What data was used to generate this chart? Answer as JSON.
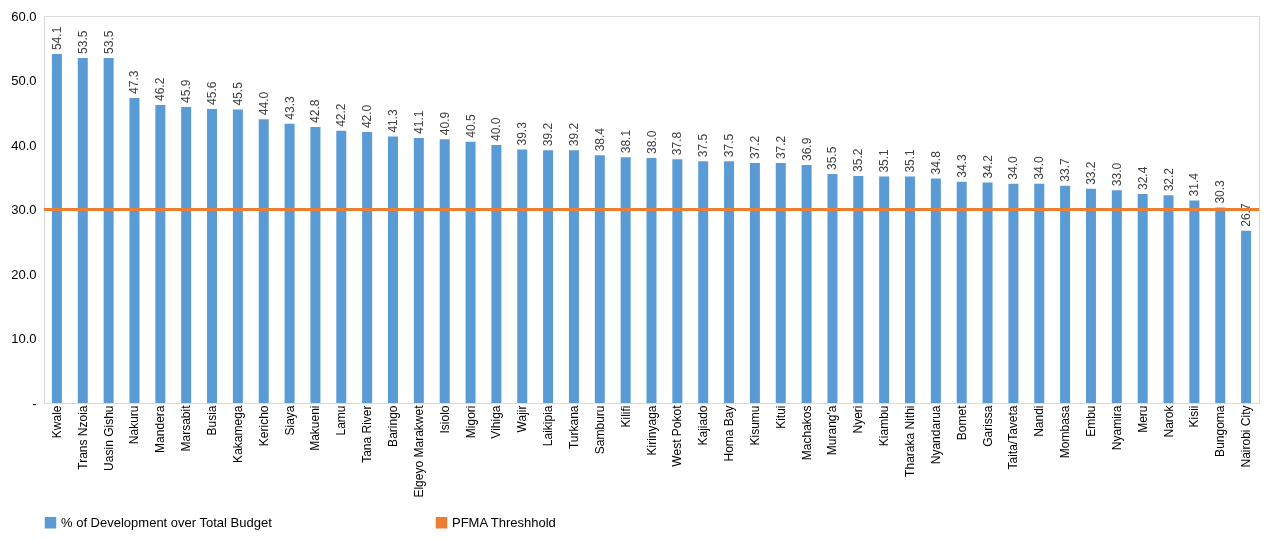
{
  "chart_data": {
    "type": "bar",
    "categories": [
      "Kwale",
      "Trans Nzoia",
      "Uasin Gishu",
      "Nakuru",
      "Mandera",
      "Marsabit",
      "Busia",
      "Kakamega",
      "Kericho",
      "Siaya",
      "Makueni",
      "Lamu",
      "Tana River",
      "Baringo",
      "Elgeyo Marakwet",
      "Isiolo",
      "Migori",
      "Vihiga",
      "Wajir",
      "Laikipia",
      "Turkana",
      "Samburu",
      "Kilifi",
      "Kirinyaga",
      "West Pokot",
      "Kajiado",
      "Homa Bay",
      "Kisumu",
      "Kitui",
      "Machakos",
      "Murang'a",
      "Nyeri",
      "Kiambu",
      "Tharaka Nithi",
      "Nyandarua",
      "Bomet",
      "Garissa",
      "Taita/Taveta",
      "Nandi",
      "Mombasa",
      "Embu",
      "Nyamira",
      "Meru",
      "Narok",
      "Kisii",
      "Bungoma",
      "Nairobi City"
    ],
    "series": [
      {
        "name": "% of Development over Total Budget",
        "color": "#5b9bd5",
        "values": [
          54.1,
          53.5,
          53.5,
          47.3,
          46.2,
          45.9,
          45.6,
          45.5,
          44.0,
          43.3,
          42.8,
          42.2,
          42.0,
          41.3,
          41.1,
          40.9,
          40.5,
          40.0,
          39.3,
          39.2,
          39.2,
          38.4,
          38.1,
          38.0,
          37.8,
          37.5,
          37.5,
          37.2,
          37.2,
          36.9,
          35.5,
          35.2,
          35.1,
          35.1,
          34.8,
          34.3,
          34.2,
          34.0,
          34.0,
          33.7,
          33.2,
          33.0,
          32.4,
          32.2,
          31.4,
          30.3,
          26.7
        ],
        "value_labels": [
          "54.1",
          "53.5",
          "53.5",
          "47.3",
          "46.2",
          "45.9",
          "45.6",
          "45.5",
          "44.0",
          "43.3",
          "42.8",
          "42.2",
          "42.0",
          "41.3",
          "41.1",
          "40.9",
          "40.5",
          "40.0",
          "39.3",
          "39.2",
          "39.2",
          "38.4",
          "38.1",
          "38.0",
          "37.8",
          "37.5",
          "37.5",
          "37.2",
          "37.2",
          "36.9",
          "35.5",
          "35.2",
          "35.1",
          "35.1",
          "34.8",
          "34.3",
          "34.2",
          "34.0",
          "34.0",
          "33.7",
          "33.2",
          "33.0",
          "32.4",
          "32.2",
          "31.4",
          "30.3",
          "26.7"
        ]
      }
    ],
    "ref_lines": [
      {
        "axis": "y",
        "value": 30,
        "label": "PFMA Threshhold",
        "color": "#ed7d31"
      }
    ],
    "ylim": [
      0,
      60
    ],
    "yticks": [
      {
        "value": 0,
        "label": "-"
      },
      {
        "value": 10,
        "label": "10.0"
      },
      {
        "value": 20,
        "label": "20.0"
      },
      {
        "value": 30,
        "label": "30.0"
      },
      {
        "value": 40,
        "label": "40.0"
      },
      {
        "value": 50,
        "label": "50.0"
      },
      {
        "value": 60,
        "label": "60.0"
      }
    ],
    "grid": false,
    "legend": "bottom"
  }
}
